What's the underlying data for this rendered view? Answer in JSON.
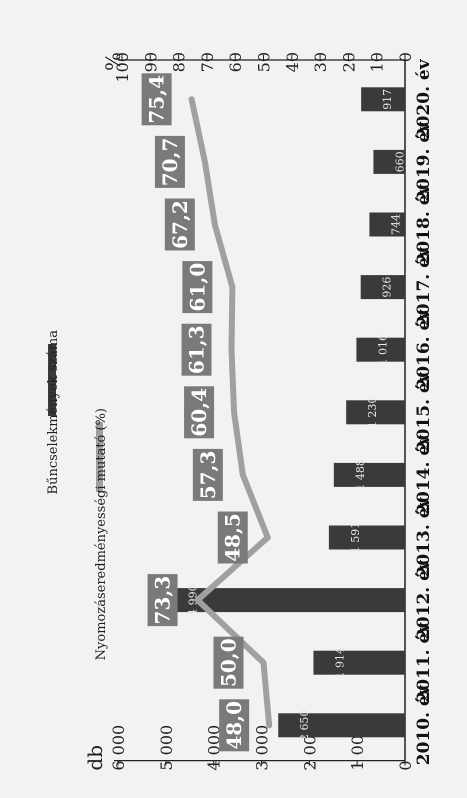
{
  "chart_data": {
    "type": "bar+line",
    "orientation": "rotated-90",
    "categories": [
      "2010. év",
      "2011. év",
      "2012. év",
      "2013. év",
      "2014. év",
      "2015. év",
      "2016. év",
      "2017. év",
      "2018. év",
      "2019. év",
      "2020. év"
    ],
    "series": [
      {
        "name": "Bűncselekmények száma",
        "type": "bar",
        "axis": "left",
        "color": "#3a3a3a",
        "values": [
          2650,
          1914,
          4990,
          1591,
          1488,
          1230,
          1016,
          926,
          744,
          660,
          917
        ],
        "labels": [
          "2 650",
          "1 914",
          "4 990",
          "1 591",
          "1 488",
          "1 230",
          "1 016",
          "926",
          "744",
          "660",
          "917"
        ]
      },
      {
        "name": "Nyomozáseredményességi mutató (%)",
        "type": "line",
        "axis": "right",
        "color": "#a0a0a0",
        "values": [
          48.0,
          50.0,
          73.3,
          48.5,
          57.3,
          60.4,
          61.3,
          61.0,
          67.2,
          70.7,
          75.4
        ],
        "labels": [
          "48,0",
          "50,0",
          "73,3",
          "48,5",
          "57,3",
          "60,4",
          "61,3",
          "61,0",
          "67,2",
          "70,7",
          "75,4"
        ]
      }
    ],
    "left_axis": {
      "unit": "db",
      "min": 0,
      "max": 6000,
      "ticks": [
        "0",
        "1 000",
        "2 000",
        "3 000",
        "4 000",
        "5 000",
        "6 000"
      ]
    },
    "right_axis": {
      "unit": "%",
      "min": 0,
      "max": 100,
      "ticks": [
        "0",
        "10",
        "20",
        "30",
        "40",
        "50",
        "60",
        "70",
        "80",
        "90",
        "100"
      ]
    },
    "legend": {
      "position": "top"
    },
    "colors": {
      "background": "#f2f2f0",
      "bar": "#3a3a3a",
      "line": "#a0a0a0",
      "label_box": "#7a7a7a",
      "axis": "#222222"
    }
  }
}
